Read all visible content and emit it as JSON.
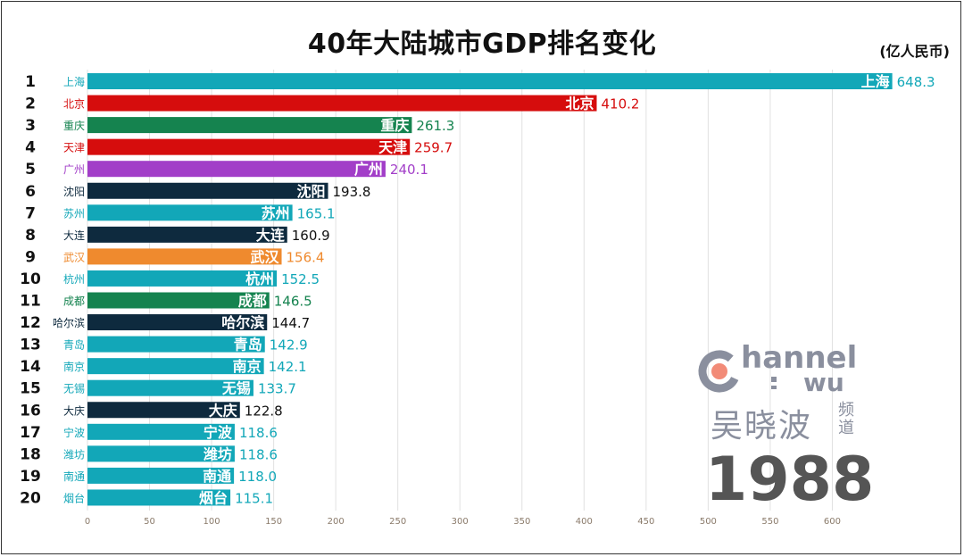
{
  "page": {
    "title": "40年大陆城市GDP排名变化",
    "unit": "(亿人民币)",
    "year": "1988"
  },
  "logo": {
    "line1": "hannel",
    "line2": "wu",
    "wordmark": "吴晓波",
    "pindao": "频道"
  },
  "chart_data": {
    "type": "bar",
    "orientation": "horizontal",
    "title": "40年大陆城市GDP排名变化",
    "unit_label": "(亿人民币)",
    "xlim": [
      0,
      650
    ],
    "xticks": [
      0,
      50,
      100,
      150,
      200,
      250,
      300,
      350,
      400,
      450,
      500,
      550,
      600
    ],
    "grid": true,
    "bars": [
      {
        "rank": 1,
        "city": "上海",
        "value": 648.3,
        "label": "648.3",
        "color": "#12a7b8"
      },
      {
        "rank": 2,
        "city": "北京",
        "value": 410.2,
        "label": "410.2",
        "color": "#d60d0d"
      },
      {
        "rank": 3,
        "city": "重庆",
        "value": 261.3,
        "label": "261.3",
        "color": "#15834f"
      },
      {
        "rank": 4,
        "city": "天津",
        "value": 259.7,
        "label": "259.7",
        "color": "#d60d0d"
      },
      {
        "rank": 5,
        "city": "广州",
        "value": 240.1,
        "label": "240.1",
        "color": "#a23ec8"
      },
      {
        "rank": 6,
        "city": "沈阳",
        "value": 193.8,
        "label": "193.8",
        "color": "#0e2a3e"
      },
      {
        "rank": 7,
        "city": "苏州",
        "value": 165.1,
        "label": "165.1",
        "color": "#12a7b8"
      },
      {
        "rank": 8,
        "city": "大连",
        "value": 160.9,
        "label": "160.9",
        "color": "#0e2a3e"
      },
      {
        "rank": 9,
        "city": "武汉",
        "value": 156.4,
        "label": "156.4",
        "color": "#ef8a2e"
      },
      {
        "rank": 10,
        "city": "杭州",
        "value": 152.5,
        "label": "152.5",
        "color": "#12a7b8"
      },
      {
        "rank": 11,
        "city": "成都",
        "value": 146.5,
        "label": "146.5",
        "color": "#15834f"
      },
      {
        "rank": 12,
        "city": "哈尔滨",
        "value": 144.7,
        "label": "144.7",
        "color": "#0e2a3e"
      },
      {
        "rank": 13,
        "city": "青岛",
        "value": 142.9,
        "label": "142.9",
        "color": "#12a7b8"
      },
      {
        "rank": 14,
        "city": "南京",
        "value": 142.1,
        "label": "142.1",
        "color": "#12a7b8"
      },
      {
        "rank": 15,
        "city": "无锡",
        "value": 133.7,
        "label": "133.7",
        "color": "#12a7b8"
      },
      {
        "rank": 16,
        "city": "大庆",
        "value": 122.8,
        "label": "122.8",
        "color": "#0e2a3e"
      },
      {
        "rank": 17,
        "city": "宁波",
        "value": 118.6,
        "label": "118.6",
        "color": "#12a7b8"
      },
      {
        "rank": 18,
        "city": "潍坊",
        "value": 118.6,
        "label": "118.6",
        "color": "#12a7b8"
      },
      {
        "rank": 19,
        "city": "南通",
        "value": 118.0,
        "label": "118.0",
        "color": "#12a7b8"
      },
      {
        "rank": 20,
        "city": "烟台",
        "value": 115.1,
        "label": "115.1",
        "color": "#12a7b8"
      }
    ]
  },
  "colors": {
    "grid": "#e1e1e1",
    "tick_text": "#8a7a6a",
    "text": "#111111",
    "logo": "#8a8f9e",
    "logo_dot": "#f28b78"
  }
}
